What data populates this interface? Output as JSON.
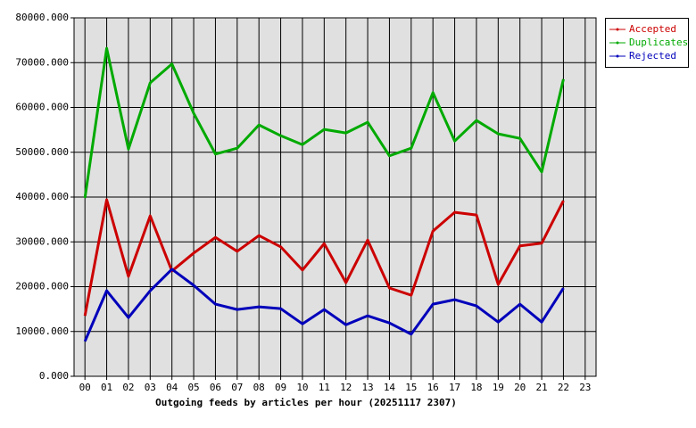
{
  "chart_data": {
    "type": "line",
    "xlabel": "Outgoing feeds by articles per hour (20251117 2307)",
    "categories": [
      "00",
      "01",
      "02",
      "03",
      "04",
      "05",
      "06",
      "07",
      "08",
      "09",
      "10",
      "11",
      "12",
      "13",
      "14",
      "15",
      "16",
      "17",
      "18",
      "19",
      "20",
      "21",
      "22",
      "23"
    ],
    "series": [
      {
        "name": "Accepted",
        "color": "#cc0000",
        "values": [
          13500,
          39400,
          22300,
          35800,
          23500,
          27500,
          31000,
          27900,
          31400,
          28900,
          23700,
          29600,
          20900,
          30400,
          19700,
          18100,
          32400,
          36600,
          36000,
          20500,
          29100,
          29700,
          39200,
          null
        ]
      },
      {
        "name": "Duplicates",
        "color": "#00aa00",
        "values": [
          39800,
          73200,
          50700,
          65500,
          69700,
          58700,
          49600,
          50900,
          56100,
          53700,
          51700,
          55100,
          54300,
          56700,
          49200,
          50900,
          63300,
          52500,
          57100,
          54100,
          53100,
          45600,
          66300,
          null
        ]
      },
      {
        "name": "Rejected",
        "color": "#0000bb",
        "values": [
          7800,
          19100,
          13100,
          19100,
          23900,
          20300,
          16100,
          14900,
          15500,
          15100,
          11700,
          14900,
          11500,
          13500,
          11900,
          9400,
          16100,
          17100,
          15700,
          12100,
          16100,
          12100,
          19700,
          null
        ]
      }
    ],
    "ylim": [
      0,
      80000
    ],
    "yticks": [
      {
        "value": 0,
        "label": "0.000"
      },
      {
        "value": 10000,
        "label": "10000.000"
      },
      {
        "value": 20000,
        "label": "20000.000"
      },
      {
        "value": 30000,
        "label": "30000.000"
      },
      {
        "value": 40000,
        "label": "40000.000"
      },
      {
        "value": 50000,
        "label": "50000.000"
      },
      {
        "value": 60000,
        "label": "60000.000"
      },
      {
        "value": 70000,
        "label": "70000.000"
      },
      {
        "value": 80000,
        "label": "80000.000"
      }
    ],
    "grid": true,
    "legend": "top-right"
  }
}
